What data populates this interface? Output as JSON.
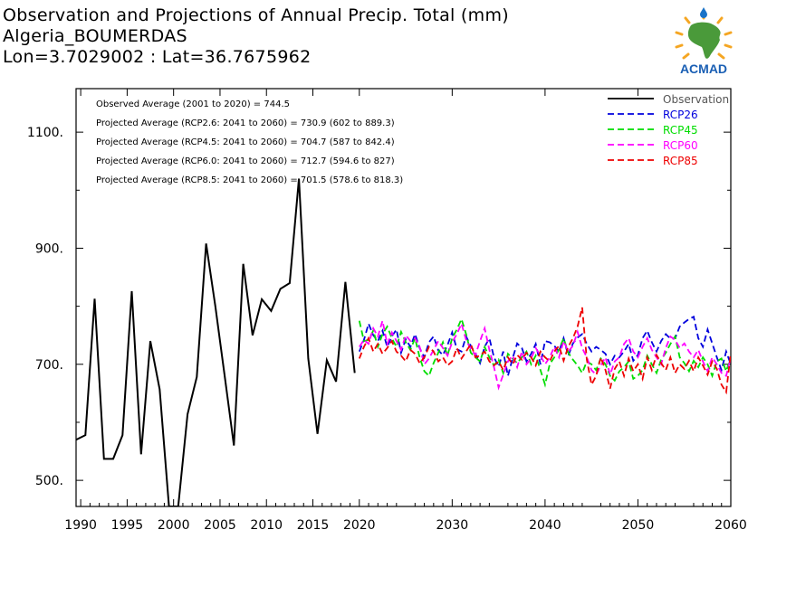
{
  "title": {
    "line1": "Observation and Projections of Annual Precip. Total (mm)",
    "line2": "Algeria_BOUMERDAS",
    "line3": "Lon=3.7029002 : Lat=36.7675962"
  },
  "logo": {
    "text": "ACMAD",
    "colors": {
      "africa": "#4a9a3a",
      "sun": "#f5a623",
      "drop": "#1a73c8",
      "text": "#1a5fb4"
    }
  },
  "notes": [
    "Observed Average (2001 to 2020) = 744.5",
    "Projected Average (RCP2.6: 2041 to 2060) = 730.9 (602 to 889.3)",
    "Projected Average (RCP4.5: 2041 to 2060) = 704.7 (587 to 842.4)",
    "Projected Average (RCP6.0: 2041 to 2060) = 712.7 (594.6 to 827)",
    "Projected Average (RCP8.5: 2041 to 2060) = 701.5 (578.6 to 818.3)"
  ],
  "chart_data": {
    "type": "line",
    "title": "Observation and Projections of Annual Precip. Total (mm)",
    "xlabel": "",
    "ylabel": "",
    "xlim": [
      1989.5,
      2060
    ],
    "ylim": [
      455,
      1175
    ],
    "x_ticks": [
      {
        "value": 1990,
        "label": "1990"
      },
      {
        "value": 1995,
        "label": "1995"
      },
      {
        "value": 2000,
        "label": "2000"
      },
      {
        "value": 2005,
        "label": "2005"
      },
      {
        "value": 2010,
        "label": "2010"
      },
      {
        "value": 2015,
        "label": "2015"
      },
      {
        "value": 2020,
        "label": "2020"
      },
      {
        "value": 2030,
        "label": "2030"
      },
      {
        "value": 2040,
        "label": "2040"
      },
      {
        "value": 2050,
        "label": "2050"
      },
      {
        "value": 2060,
        "label": "2060"
      }
    ],
    "y_ticks": [
      {
        "value": 500,
        "label": "500."
      },
      {
        "value": 700,
        "label": "700."
      },
      {
        "value": 900,
        "label": "900."
      },
      {
        "value": 1100,
        "label": "1100."
      }
    ],
    "grid": false,
    "legend_position": "top-right",
    "series": [
      {
        "name": "Observation",
        "color": "#000000",
        "dash": "solid",
        "x": [
          1989.5,
          1990.5,
          1991.5,
          1992.5,
          1993.5,
          1994.5,
          1995.5,
          1996.5,
          1997.5,
          1998.5,
          1999.5,
          2000.5,
          2001.5,
          2002.5,
          2003.5,
          2004.5,
          2005.5,
          2006.5,
          2007.5,
          2008.5,
          2009.5,
          2010.5,
          2011.5,
          2012.5,
          2013.5,
          2014.5,
          2015.5,
          2016.5,
          2017.5,
          2018.5,
          2019.5
        ],
        "y": [
          570,
          578,
          813,
          537,
          537,
          578,
          826,
          545,
          740,
          657,
          455,
          455,
          614,
          678,
          908,
          800,
          680,
          560,
          873,
          750,
          812,
          792,
          830,
          840,
          1020,
          710,
          580,
          707,
          670,
          842,
          685
        ]
      },
      {
        "name": "RCP26",
        "color": "#0000dd",
        "dash": "dashed",
        "x": [
          2020,
          2020.5,
          2021,
          2021.5,
          2022,
          2022.5,
          2023,
          2023.5,
          2024,
          2024.5,
          2025,
          2025.5,
          2026,
          2026.5,
          2027,
          2027.5,
          2028,
          2028.5,
          2029,
          2029.5,
          2030,
          2030.5,
          2031,
          2031.5,
          2032,
          2032.5,
          2033,
          2033.5,
          2034,
          2034.5,
          2035,
          2035.5,
          2036,
          2036.5,
          2037,
          2037.5,
          2038,
          2038.5,
          2039,
          2039.5,
          2040,
          2040.5,
          2041,
          2041.5,
          2042,
          2042.5,
          2043,
          2043.5,
          2044,
          2044.5,
          2045,
          2045.5,
          2046,
          2046.5,
          2047,
          2047.5,
          2048,
          2048.5,
          2049,
          2049.5,
          2050,
          2050.5,
          2051,
          2051.5,
          2052,
          2052.5,
          2053,
          2053.5,
          2054,
          2054.5,
          2055,
          2055.5,
          2056,
          2056.5,
          2057,
          2057.5,
          2058,
          2058.5,
          2059,
          2059.5,
          2060
        ],
        "y": [
          722,
          742,
          770,
          750,
          740,
          758,
          730,
          748,
          760,
          720,
          743,
          730,
          752,
          728,
          712,
          738,
          748,
          724,
          716,
          733,
          755,
          726,
          722,
          748,
          732,
          718,
          702,
          730,
          745,
          712,
          696,
          722,
          680,
          710,
          736,
          728,
          705,
          718,
          735,
          700,
          740,
          738,
          732,
          722,
          745,
          715,
          736,
          746,
          752,
          735,
          722,
          730,
          725,
          718,
          700,
          715,
          712,
          722,
          735,
          706,
          716,
          745,
          758,
          738,
          722,
          740,
          752,
          744,
          745,
          765,
          772,
          778,
          782,
          745,
          730,
          760,
          736,
          712,
          690,
          722,
          700
        ]
      },
      {
        "name": "RCP45",
        "color": "#00dd00",
        "dash": "dashed",
        "x": [
          2020,
          2020.5,
          2021,
          2021.5,
          2022,
          2022.5,
          2023,
          2023.5,
          2024,
          2024.5,
          2025,
          2025.5,
          2026,
          2026.5,
          2027,
          2027.5,
          2028,
          2028.5,
          2029,
          2029.5,
          2030,
          2030.5,
          2031,
          2031.5,
          2032,
          2032.5,
          2033,
          2033.5,
          2034,
          2034.5,
          2035,
          2035.5,
          2036,
          2036.5,
          2037,
          2037.5,
          2038,
          2038.5,
          2039,
          2039.5,
          2040,
          2040.5,
          2041,
          2041.5,
          2042,
          2042.5,
          2043,
          2043.5,
          2044,
          2044.5,
          2045,
          2045.5,
          2046,
          2046.5,
          2047,
          2047.5,
          2048,
          2048.5,
          2049,
          2049.5,
          2050,
          2050.5,
          2051,
          2051.5,
          2052,
          2052.5,
          2053,
          2053.5,
          2054,
          2054.5,
          2055,
          2055.5,
          2056,
          2056.5,
          2057,
          2057.5,
          2058,
          2058.5,
          2059,
          2059.5,
          2060
        ],
        "y": [
          775,
          740,
          742,
          758,
          730,
          752,
          765,
          745,
          730,
          756,
          738,
          725,
          745,
          712,
          688,
          680,
          702,
          720,
          738,
          715,
          745,
          760,
          778,
          752,
          720,
          712,
          705,
          730,
          712,
          698,
          708,
          685,
          718,
          710,
          702,
          712,
          722,
          700,
          715,
          690,
          665,
          700,
          712,
          725,
          745,
          720,
          708,
          698,
          685,
          705,
          700,
          690,
          710,
          700,
          680,
          672,
          688,
          695,
          705,
          675,
          680,
          690,
          715,
          700,
          685,
          708,
          720,
          735,
          748,
          712,
          702,
          688,
          706,
          695,
          712,
          700,
          680,
          705,
          710,
          688,
          712
        ]
      },
      {
        "name": "RCP60",
        "color": "#ff00ff",
        "dash": "dashed",
        "x": [
          2020,
          2020.5,
          2021,
          2021.5,
          2022,
          2022.5,
          2023,
          2023.5,
          2024,
          2024.5,
          2025,
          2025.5,
          2026,
          2026.5,
          2027,
          2027.5,
          2028,
          2028.5,
          2029,
          2029.5,
          2030,
          2030.5,
          2031,
          2031.5,
          2032,
          2032.5,
          2033,
          2033.5,
          2034,
          2034.5,
          2035,
          2035.5,
          2036,
          2036.5,
          2037,
          2037.5,
          2038,
          2038.5,
          2039,
          2039.5,
          2040,
          2040.5,
          2041,
          2041.5,
          2042,
          2042.5,
          2043,
          2043.5,
          2044,
          2044.5,
          2045,
          2045.5,
          2046,
          2046.5,
          2047,
          2047.5,
          2048,
          2048.5,
          2049,
          2049.5,
          2050,
          2050.5,
          2051,
          2051.5,
          2052,
          2052.5,
          2053,
          2053.5,
          2054,
          2054.5,
          2055,
          2055.5,
          2056,
          2056.5,
          2057,
          2057.5,
          2058,
          2058.5,
          2059,
          2059.5,
          2060
        ],
        "y": [
          730,
          742,
          735,
          762,
          748,
          775,
          735,
          755,
          740,
          725,
          750,
          740,
          745,
          730,
          700,
          710,
          725,
          740,
          728,
          715,
          738,
          752,
          770,
          742,
          726,
          716,
          740,
          762,
          725,
          695,
          660,
          682,
          705,
          715,
          695,
          722,
          700,
          710,
          728,
          715,
          700,
          712,
          730,
          712,
          740,
          722,
          732,
          756,
          728,
          712,
          690,
          682,
          698,
          712,
          682,
          705,
          712,
          735,
          745,
          722,
          712,
          730,
          745,
          725,
          712,
          700,
          728,
          748,
          742,
          728,
          736,
          722,
          712,
          725,
          705,
          688,
          712,
          700,
          685,
          680,
          712
        ]
      },
      {
        "name": "RCP85",
        "color": "#ee0000",
        "dash": "dashed",
        "x": [
          2020,
          2020.5,
          2021,
          2021.5,
          2022,
          2022.5,
          2023,
          2023.5,
          2024,
          2024.5,
          2025,
          2025.5,
          2026,
          2026.5,
          2027,
          2027.5,
          2028,
          2028.5,
          2029,
          2029.5,
          2030,
          2030.5,
          2031,
          2031.5,
          2032,
          2032.5,
          2033,
          2033.5,
          2034,
          2034.5,
          2035,
          2035.5,
          2036,
          2036.5,
          2037,
          2037.5,
          2038,
          2038.5,
          2039,
          2039.5,
          2040,
          2040.5,
          2041,
          2041.5,
          2042,
          2042.5,
          2043,
          2043.5,
          2044,
          2044.5,
          2045,
          2045.5,
          2046,
          2046.5,
          2047,
          2047.5,
          2048,
          2048.5,
          2049,
          2049.5,
          2050,
          2050.5,
          2051,
          2051.5,
          2052,
          2052.5,
          2053,
          2053.5,
          2054,
          2054.5,
          2055,
          2055.5,
          2056,
          2056.5,
          2057,
          2057.5,
          2058,
          2058.5,
          2059,
          2059.5,
          2060
        ],
        "y": [
          710,
          730,
          745,
          722,
          735,
          718,
          728,
          740,
          722,
          715,
          705,
          725,
          718,
          702,
          712,
          730,
          722,
          705,
          712,
          698,
          705,
          728,
          710,
          722,
          735,
          712,
          715,
          722,
          705,
          698,
          705,
          690,
          712,
          700,
          716,
          708,
          720,
          712,
          698,
          722,
          712,
          705,
          722,
          732,
          706,
          730,
          745,
          765,
          798,
          708,
          665,
          680,
          712,
          690,
          658,
          692,
          705,
          680,
          710,
          688,
          700,
          675,
          712,
          690,
          716,
          702,
          690,
          712,
          685,
          700,
          692,
          706,
          688,
          712,
          698,
          682,
          705,
          692,
          665,
          652,
          720
        ]
      }
    ]
  }
}
